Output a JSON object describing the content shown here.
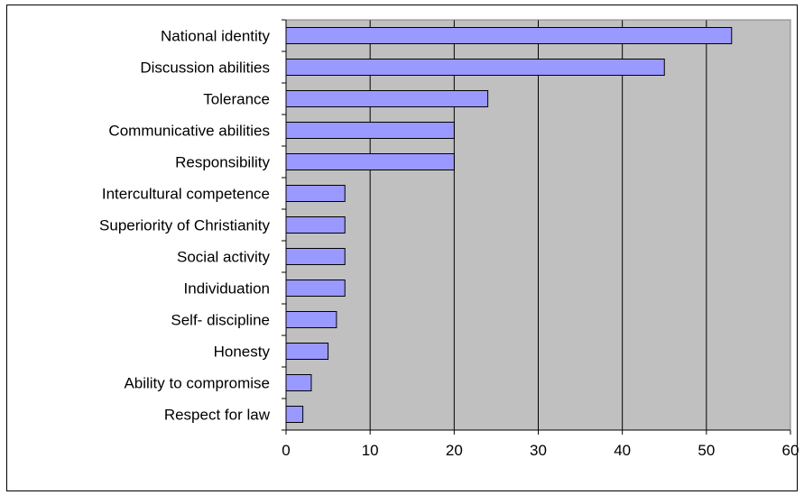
{
  "chart_data": {
    "type": "bar",
    "orientation": "horizontal",
    "title": "",
    "xlabel": "",
    "ylabel": "",
    "categories": [
      "National identity",
      "Discussion abilities",
      "Tolerance",
      "Communicative abilities",
      "Responsibility",
      "Intercultural competence",
      "Superiority of Christianity",
      "Social activity",
      "Individuation",
      "Self- discipline",
      "Honesty",
      "Ability to compromise",
      "Respect for law"
    ],
    "values": [
      53,
      45,
      24,
      20,
      20,
      7,
      7,
      7,
      7,
      6,
      5,
      3,
      2
    ],
    "xlim": [
      0,
      60
    ],
    "xticks": [
      "0",
      "10",
      "20",
      "30",
      "40",
      "50",
      "60"
    ],
    "grid": "vertical",
    "legend": "none",
    "colors": {
      "bar_fill": "#9999ff",
      "bar_edge": "#000000",
      "plot_background": "#c0c0c0"
    }
  }
}
